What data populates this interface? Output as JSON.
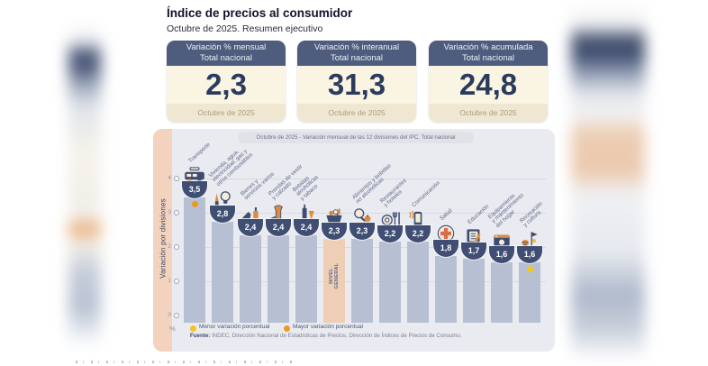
{
  "page": {
    "title": "Índice de precios al consumidor",
    "subtitle": "Octubre de 2025. Resumen ejecutivo"
  },
  "summary_cards": [
    {
      "metric": "Variación % mensual",
      "scope": "Total nacional",
      "value": "2,3",
      "period": "Octubre de 2025"
    },
    {
      "metric": "Variación % interanual",
      "scope": "Total nacional",
      "value": "31,3",
      "period": "Octubre de 2025"
    },
    {
      "metric": "Variación % acumulada",
      "scope": "Total nacional",
      "value": "24,8",
      "period": "Octubre de 2025"
    }
  ],
  "chart_data": {
    "type": "bar",
    "title": "Octubre de 2025 - Variación mensual de las 12 divisiones del IPC. Total nacional",
    "ylabel": "Variación por divisiones",
    "y_unit": "%",
    "ylim": [
      0,
      4
    ],
    "yticks": [
      0,
      1,
      2,
      3,
      4
    ],
    "grid": true,
    "legend_position": "bottom",
    "categories": [
      "Transporte",
      "Vivienda, agua, electricidad, gas y otros combustibles",
      "Bienes y servicios varios",
      "Prendas de vestir y calzado",
      "Bebidas alcohólicas y tabaco",
      "Nivel general",
      "Alimentos y bebidas no alcohólicas",
      "Restaurantes y hoteles",
      "Comunicación",
      "Salud",
      "Educación",
      "Equipamiento y mantenimiento del hogar",
      "Recreación y cultura"
    ],
    "values": [
      3.5,
      2.8,
      2.4,
      2.4,
      2.4,
      2.3,
      2.3,
      2.2,
      2.2,
      1.8,
      1.7,
      1.6,
      1.6
    ],
    "value_labels": [
      "3,5",
      "2,8",
      "2,4",
      "2,4",
      "2,4",
      "2,3",
      "2,3",
      "2,2",
      "2,2",
      "1,8",
      "1,7",
      "1,6",
      "1,6"
    ],
    "bars": [
      {
        "label": "Transporte",
        "icon": "bus-icon",
        "dot": "mayor"
      },
      {
        "label": "Vivienda, agua,\nelectricidad, gas y\notros combustibles",
        "icon": "housing-utilities-icon"
      },
      {
        "label": "Bienes y\nservicios varios",
        "icon": "goods-services-icon"
      },
      {
        "label": "Prendas de vestir\ny calzado",
        "icon": "clothing-icon"
      },
      {
        "label": "Bebidas\nalcohólicas\ny tabaco",
        "icon": "alcohol-tobacco-icon"
      },
      {
        "label": "",
        "icon": "basket-icon",
        "variant": "general",
        "in_bar_text": "NIVEL\nGENERAL"
      },
      {
        "label": "Alimentos y bebidas\nno alcohólicas",
        "icon": "food-icon"
      },
      {
        "label": "Restaurantes\ny hoteles",
        "icon": "restaurants-icon"
      },
      {
        "label": "Comunicación",
        "icon": "communication-icon"
      },
      {
        "label": "Salud",
        "icon": "health-icon"
      },
      {
        "label": "Educación",
        "icon": "education-icon"
      },
      {
        "label": "Equipamiento\ny mantenimiento\ndel hogar",
        "icon": "home-equipment-icon"
      },
      {
        "label": "Recreación\ny cultura",
        "icon": "recreation-icon",
        "dot": "menor"
      }
    ],
    "legend": [
      {
        "key": "menor",
        "label": "Menor variación porcentual"
      },
      {
        "key": "mayor",
        "label": "Mayor variación porcentual"
      }
    ],
    "source_prefix": "Fuente:",
    "source_text": " INDEC, Dirección Nacional de Estadísticas de Precios, Dirección de Índices de Precios de Consumo."
  },
  "colors": {
    "header_navy": "#4e5c7e",
    "value_navy": "#2b3b5d",
    "card_body_cream": "#faf4e3",
    "card_footer_cream": "#f0e7d2",
    "panel_gray": "#e9ebf1",
    "side_strip_salmon": "#f3d3bd",
    "bar_blue_gray": "#b7c0d2",
    "bar_general_salmon": "#eeceb5",
    "badge_navy": "#3f4e72",
    "dot_menor": "#f3c61f",
    "dot_mayor": "#ec9b21",
    "icon_navy": "#3d4d72",
    "icon_orange": "#df8a3e",
    "icon_cream": "#f6ecd9",
    "health_red": "#d96c4a",
    "star_yellow": "#f2c230"
  }
}
